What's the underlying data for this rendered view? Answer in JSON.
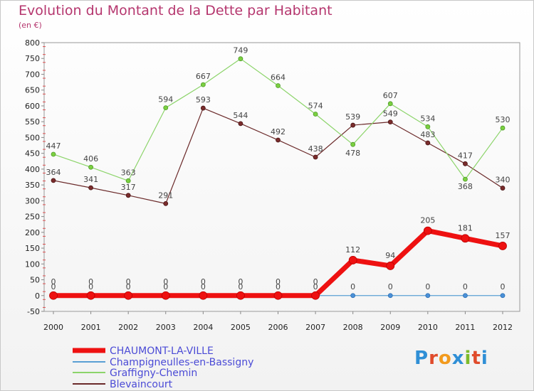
{
  "title": "Evolution du Montant de la Dette par Habitant",
  "unit": "(en €)",
  "logo": {
    "text": "Proxiti",
    "colors": [
      "#2f8fd6",
      "#e04b2b",
      "#f29a1d",
      "#2f8fd6",
      "#7dbb2b",
      "#e04b2b",
      "#2f8fd6"
    ]
  },
  "chart_data": {
    "type": "line",
    "x": [
      "2000",
      "2001",
      "2002",
      "2003",
      "2004",
      "2005",
      "2006",
      "2007",
      "2008",
      "2009",
      "2010",
      "2011",
      "2012"
    ],
    "ylim": [
      -50,
      800
    ],
    "yticks": [
      -50,
      0,
      50,
      100,
      150,
      200,
      250,
      300,
      350,
      400,
      450,
      500,
      550,
      600,
      650,
      700,
      750,
      800
    ],
    "grid": false,
    "legend_position": "bottom-left",
    "series": [
      {
        "name": "CHAUMONT-LA-VILLE",
        "color": "#ee1111",
        "values": [
          0,
          0,
          0,
          0,
          0,
          0,
          0,
          0,
          112,
          94,
          205,
          181,
          157
        ]
      },
      {
        "name": "Champigneulles-en-Bassigny",
        "color": "#5a9fd4",
        "values": [
          0,
          0,
          0,
          0,
          0,
          0,
          0,
          0,
          0,
          0,
          0,
          0,
          0
        ]
      },
      {
        "name": "Graffigny-Chemin",
        "color": "#8cd46a",
        "values": [
          447,
          406,
          363,
          594,
          667,
          749,
          664,
          574,
          478,
          607,
          534,
          368,
          530
        ]
      },
      {
        "name": "Blevaincourt",
        "color": "#6b2a2a",
        "values": [
          364,
          341,
          317,
          291,
          593,
          544,
          492,
          438,
          539,
          549,
          483,
          417,
          340
        ]
      }
    ]
  }
}
